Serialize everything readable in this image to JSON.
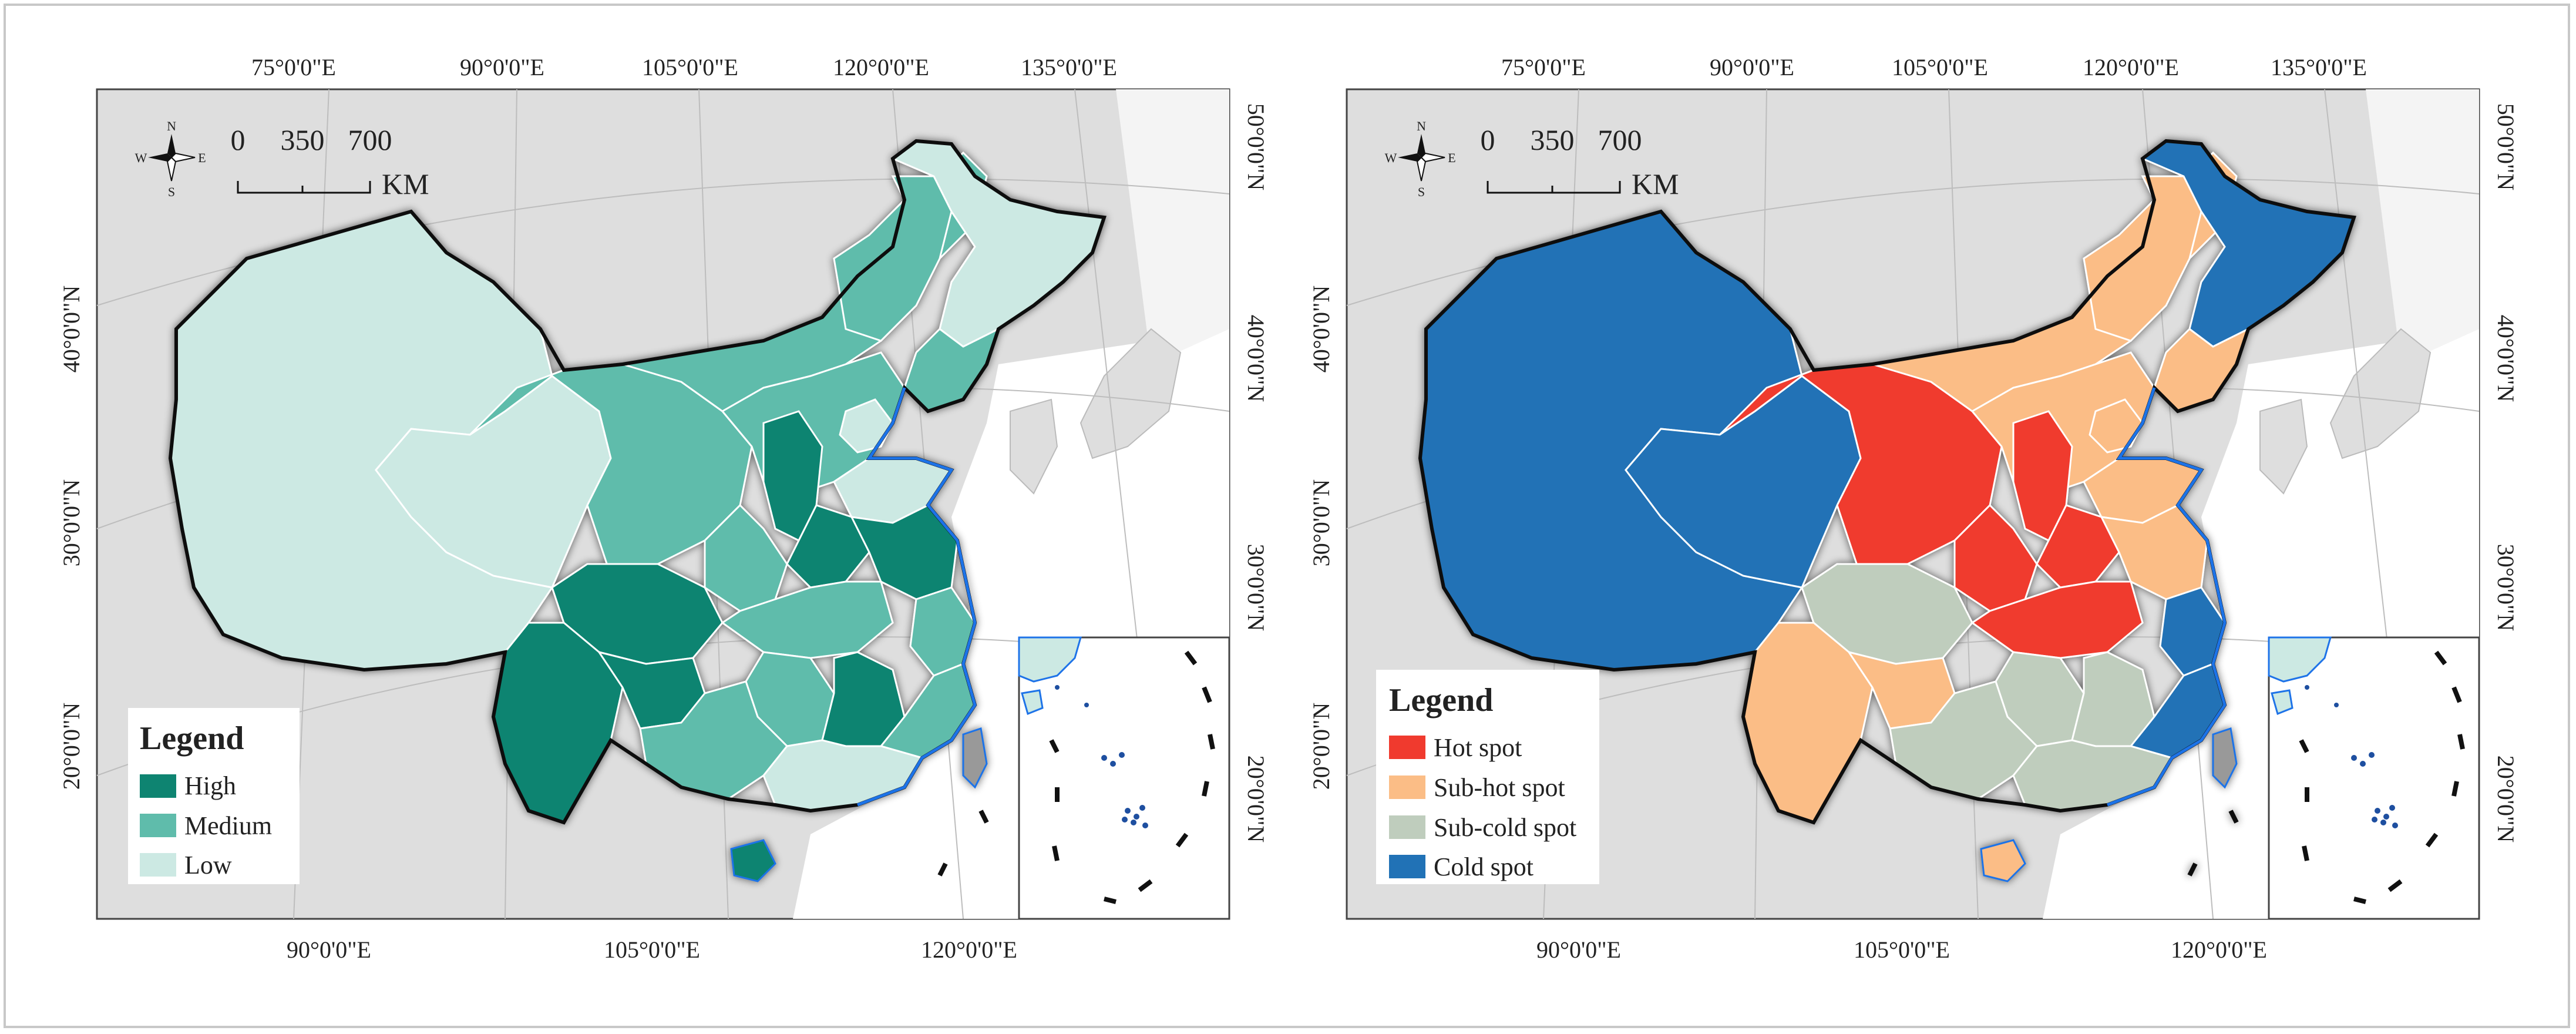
{
  "panels": [
    {
      "id": "left",
      "top_lon_labels": [
        "75°0'0\"E",
        "90°0'0\"E",
        "105°0'0\"E",
        "120°0'0\"E",
        "135°0'0\"E"
      ],
      "bottom_lon_labels": [
        "90°0'0\"E",
        "105°0'0\"E",
        "120°0'0\"E"
      ],
      "left_lat_labels": [
        "40°0'0\"N",
        "30°0'0\"N",
        "20°0'0\"N"
      ],
      "right_lat_labels": [
        "50°0'0\"N",
        "40°0'0\"N",
        "30°0'0\"N",
        "20°0'0\"N"
      ],
      "scale_ticks": [
        "0",
        "350",
        "700"
      ],
      "scale_unit": "KM",
      "compass": {
        "n": "N",
        "s": "S",
        "e": "E",
        "w": "W"
      },
      "legend": {
        "title": "Legend",
        "items": [
          {
            "label": "High",
            "color": "#0e8471"
          },
          {
            "label": "Medium",
            "color": "#5fbcab"
          },
          {
            "label": "Low",
            "color": "#cce9e3"
          }
        ]
      }
    },
    {
      "id": "right",
      "top_lon_labels": [
        "75°0'0\"E",
        "90°0'0\"E",
        "105°0'0\"E",
        "120°0'0\"E",
        "135°0'0\"E"
      ],
      "bottom_lon_labels": [
        "90°0'0\"E",
        "105°0'0\"E",
        "120°0'0\"E"
      ],
      "left_lat_labels": [
        "40°0'0\"N",
        "30°0'0\"N",
        "20°0'0\"N"
      ],
      "right_lat_labels": [
        "50°0'0\"N",
        "40°0'0\"N",
        "30°0'0\"N",
        "20°0'0\"N"
      ],
      "scale_ticks": [
        "0",
        "350",
        "700"
      ],
      "scale_unit": "KM",
      "compass": {
        "n": "N",
        "s": "S",
        "e": "E",
        "w": "W"
      },
      "legend": {
        "title": "Legend",
        "items": [
          {
            "label": "Hot spot",
            "color": "#f03a2e"
          },
          {
            "label": "Sub-hot spot",
            "color": "#fbbd86"
          },
          {
            "label": "Sub-cold spot",
            "color": "#bfcdbd"
          },
          {
            "label": "Cold spot",
            "color": "#2172b6"
          }
        ]
      }
    }
  ],
  "colors": {
    "background_land": "#dedede",
    "sea": "#ffffff",
    "coastline": "#1e73e8",
    "border": "#111111"
  }
}
